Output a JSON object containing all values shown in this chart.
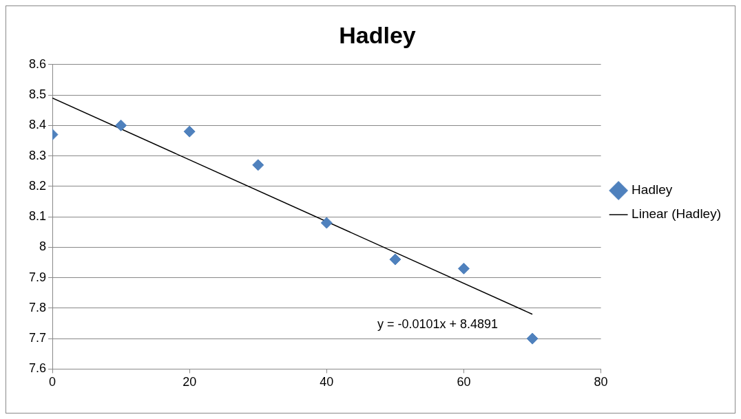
{
  "chart_data": {
    "type": "scatter",
    "title": "Hadley",
    "series": [
      {
        "name": "Hadley",
        "color": "#4f81bd",
        "x": [
          0,
          10,
          20,
          30,
          40,
          50,
          60,
          70
        ],
        "values": [
          8.37,
          8.4,
          8.38,
          8.27,
          8.08,
          7.96,
          7.93,
          7.7
        ],
        "marker": "diamond"
      },
      {
        "name": "Linear (Hadley)",
        "type": "line",
        "color": "#000000",
        "x": [
          0,
          70
        ],
        "values": [
          8.49,
          7.78
        ],
        "marker": "none"
      }
    ],
    "xlim": [
      0,
      80
    ],
    "xticks": [
      0,
      20,
      40,
      60,
      80
    ],
    "ylim": [
      7.6,
      8.6
    ],
    "yticks": [
      7.6,
      7.7,
      7.8,
      7.9,
      8,
      8.1,
      8.2,
      8.3,
      8.4,
      8.5,
      8.6
    ],
    "annotations": [
      "y = -0.0101x + 8.4891"
    ],
    "grid": "y",
    "legend": "right"
  }
}
